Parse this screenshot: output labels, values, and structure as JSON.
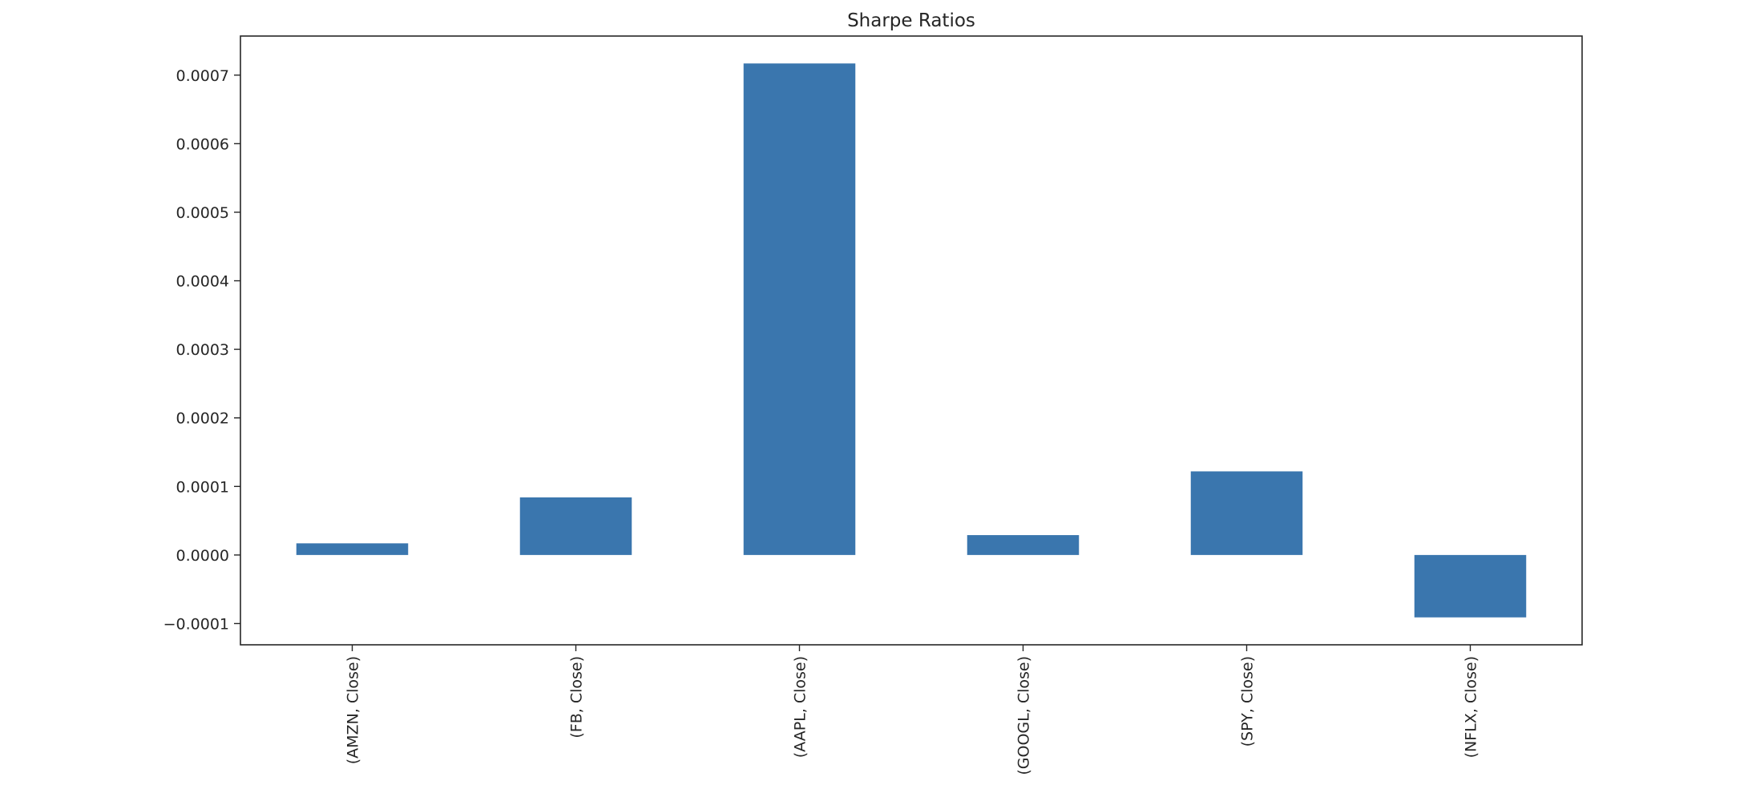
{
  "chart_data": {
    "type": "bar",
    "title": "Sharpe Ratios",
    "xlabel": "",
    "ylabel": "",
    "categories": [
      "(AMZN, Close)",
      "(FB, Close)",
      "(AAPL, Close)",
      "(GOOGL, Close)",
      "(SPY, Close)",
      "(NFLX, Close)"
    ],
    "values": [
      1.7e-05,
      8.4e-05,
      0.000717,
      2.9e-05,
      0.000122,
      -9.1e-05
    ],
    "ylim": [
      -0.000131,
      0.000757
    ],
    "yticks": [
      -0.0001,
      0.0,
      0.0001,
      0.0002,
      0.0003,
      0.0004,
      0.0005,
      0.0006,
      0.0007
    ],
    "ytick_labels": [
      "−0.0001",
      "0.0000",
      "0.0001",
      "0.0002",
      "0.0003",
      "0.0004",
      "0.0005",
      "0.0006",
      "0.0007"
    ],
    "grid": false,
    "bar_color": "#3a76ae"
  }
}
